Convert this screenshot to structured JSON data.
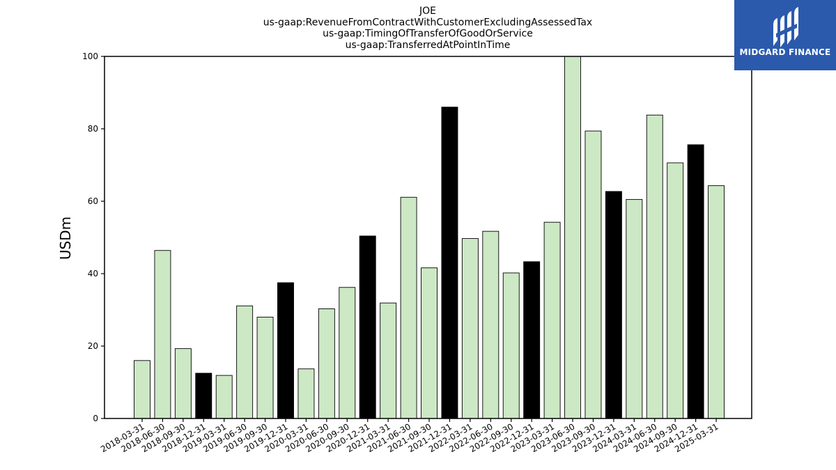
{
  "chart_data": {
    "type": "bar",
    "title": [
      "JOE",
      "us-gaap:RevenueFromContractWithCustomerExcludingAssessedTax",
      "us-gaap:TimingOfTransferOfGoodOrService",
      "us-gaap:TransferredAtPointInTime"
    ],
    "xlabel": "",
    "ylabel": "USDm",
    "ylim": [
      0,
      100
    ],
    "yticks": [
      0,
      20,
      40,
      60,
      80,
      100
    ],
    "grid": false,
    "categories": [
      "2018-03-31",
      "2018-06-30",
      "2018-09-30",
      "2018-12-31",
      "2019-03-31",
      "2019-06-30",
      "2019-09-30",
      "2019-12-31",
      "2020-03-31",
      "2020-06-30",
      "2020-09-30",
      "2020-12-31",
      "2021-03-31",
      "2021-06-30",
      "2021-09-30",
      "2021-12-31",
      "2022-03-31",
      "2022-06-30",
      "2022-09-30",
      "2022-12-31",
      "2023-03-31",
      "2023-06-30",
      "2023-09-30",
      "2023-12-31",
      "2024-03-31",
      "2024-06-30",
      "2024-09-30",
      "2024-12-31",
      "2025-03-31"
    ],
    "values": [
      16.0,
      46.4,
      19.3,
      12.5,
      11.9,
      31.1,
      28.0,
      37.5,
      13.7,
      30.3,
      36.2,
      50.4,
      31.9,
      61.1,
      41.6,
      86.0,
      49.7,
      51.7,
      40.2,
      43.3,
      54.2,
      101.0,
      79.4,
      62.7,
      60.5,
      83.8,
      70.6,
      75.6,
      64.3
    ],
    "bar_colors": [
      "#cce8c4",
      "#cce8c4",
      "#cce8c4",
      "#000000",
      "#cce8c4",
      "#cce8c4",
      "#cce8c4",
      "#000000",
      "#cce8c4",
      "#cce8c4",
      "#cce8c4",
      "#000000",
      "#cce8c4",
      "#cce8c4",
      "#cce8c4",
      "#000000",
      "#cce8c4",
      "#cce8c4",
      "#cce8c4",
      "#000000",
      "#cce8c4",
      "#cce8c4",
      "#cce8c4",
      "#000000",
      "#cce8c4",
      "#cce8c4",
      "#cce8c4",
      "#000000",
      "#cce8c4"
    ]
  },
  "logo": {
    "text": "MIDGARD FINANCE",
    "background": "#2b5aac"
  }
}
